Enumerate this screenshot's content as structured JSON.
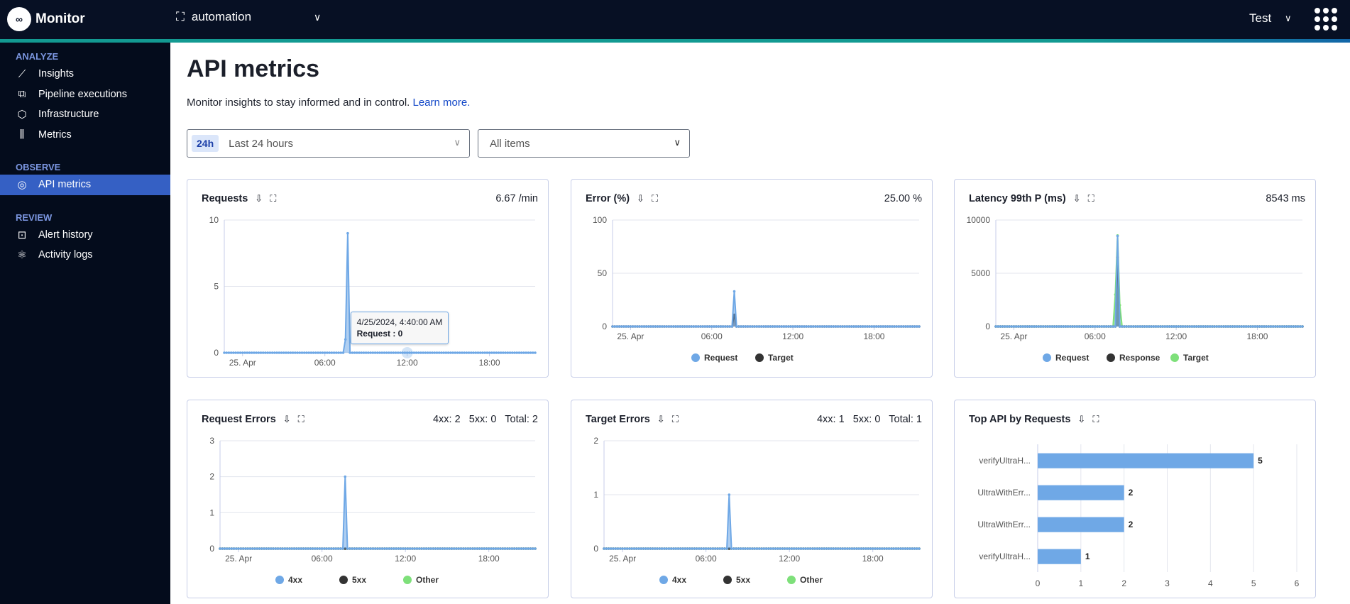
{
  "header": {
    "app_name": "Monitor",
    "workspace": "automation",
    "user": "Test"
  },
  "sidebar": {
    "sections": [
      {
        "label": "ANALYZE",
        "items": [
          {
            "label": "Insights",
            "icon": "chart-line-icon"
          },
          {
            "label": "Pipeline executions",
            "icon": "pipeline-icon"
          },
          {
            "label": "Infrastructure",
            "icon": "hexagon-icon"
          },
          {
            "label": "Metrics",
            "icon": "bars-icon"
          }
        ]
      },
      {
        "label": "OBSERVE",
        "items": [
          {
            "label": "API metrics",
            "icon": "pulse-icon",
            "active": true
          }
        ]
      },
      {
        "label": "REVIEW",
        "items": [
          {
            "label": "Alert history",
            "icon": "alert-icon"
          },
          {
            "label": "Activity logs",
            "icon": "atom-icon"
          }
        ]
      }
    ]
  },
  "page": {
    "title": "API metrics",
    "subtitle": "Monitor insights to stay informed and in control.",
    "learn_more": "Learn more."
  },
  "filters": {
    "time_badge": "24h",
    "time_value": "Last 24 hours",
    "items_value": "All items"
  },
  "colors": {
    "request": "#6fa8e6",
    "response": "#333333",
    "target": "#7ee07a",
    "accent": "#3560c4"
  },
  "cards": [
    {
      "title": "Requests",
      "value": "6.67 /min"
    },
    {
      "title": "Error (%)",
      "value": "25.00 %"
    },
    {
      "title": "Latency 99th P (ms)",
      "value": "8543 ms"
    },
    {
      "title": "Request Errors",
      "value": "4xx: 2   5xx: 0   Total: 2"
    },
    {
      "title": "Target Errors",
      "value": "4xx: 1   5xx: 0   Total: 1"
    },
    {
      "title": "Top API by Requests",
      "value": ""
    }
  ],
  "tooltip": {
    "line1": "4/25/2024, 4:40:00 AM",
    "line2": "Request : 0"
  },
  "chart_data": [
    {
      "type": "area",
      "x_range": [
        "2024-04-24 22:40",
        "2024-04-25 21:20"
      ],
      "interval_minutes": 10,
      "xticks": [
        "25. Apr",
        "06:00",
        "12:00",
        "18:00"
      ],
      "yticks": [
        0,
        5,
        10
      ],
      "ylim": [
        0,
        10
      ],
      "legend": false,
      "series": [
        {
          "name": "Request",
          "color": "#6fa8e6",
          "default": 0,
          "points": [
            [
              "07:30",
              1
            ],
            [
              "07:40",
              9
            ],
            [
              "07:50",
              0
            ]
          ]
        }
      ]
    },
    {
      "type": "area",
      "x_range": [
        "2024-04-24 22:40",
        "2024-04-25 21:20"
      ],
      "interval_minutes": 10,
      "xticks": [
        "25. Apr",
        "06:00",
        "12:00",
        "18:00"
      ],
      "yticks": [
        0,
        50,
        100
      ],
      "ylim": [
        0,
        100
      ],
      "legend": "bottom",
      "series": [
        {
          "name": "Request",
          "color": "#6fa8e6",
          "default": 0,
          "points": [
            [
              "07:40",
              33
            ]
          ]
        },
        {
          "name": "Target",
          "color": "#333333",
          "default": 0,
          "points": [
            [
              "07:40",
              11
            ]
          ]
        }
      ]
    },
    {
      "type": "area",
      "x_range": [
        "2024-04-24 22:40",
        "2024-04-25 21:20"
      ],
      "interval_minutes": 10,
      "xticks": [
        "25. Apr",
        "06:00",
        "12:00",
        "18:00"
      ],
      "yticks": [
        0,
        5000,
        10000
      ],
      "ylim": [
        0,
        10000
      ],
      "legend": "bottom",
      "series": [
        {
          "name": "Request",
          "color": "#6fa8e6",
          "default": 0,
          "points": [
            [
              "07:40",
              8500
            ]
          ]
        },
        {
          "name": "Response",
          "color": "#333333",
          "default": 0,
          "points": [
            [
              "07:40",
              6500
            ]
          ]
        },
        {
          "name": "Target",
          "color": "#7ee07a",
          "default": 0,
          "points": [
            [
              "07:30",
              3000
            ],
            [
              "07:40",
              8543
            ],
            [
              "07:50",
              2000
            ]
          ]
        }
      ]
    },
    {
      "type": "area",
      "x_range": [
        "2024-04-24 22:40",
        "2024-04-25 21:20"
      ],
      "interval_minutes": 10,
      "xticks": [
        "25. Apr",
        "06:00",
        "12:00",
        "18:00"
      ],
      "yticks": [
        0,
        1,
        2,
        3
      ],
      "ylim": [
        0,
        3
      ],
      "legend": "bottom",
      "series": [
        {
          "name": "4xx",
          "color": "#6fa8e6",
          "default": 0,
          "points": [
            [
              "07:40",
              2
            ]
          ]
        },
        {
          "name": "5xx",
          "color": "#333333",
          "default": 0,
          "points": []
        },
        {
          "name": "Other",
          "color": "#7ee07a",
          "default": 0,
          "points": []
        }
      ]
    },
    {
      "type": "area",
      "x_range": [
        "2024-04-24 22:40",
        "2024-04-25 21:20"
      ],
      "interval_minutes": 10,
      "xticks": [
        "25. Apr",
        "06:00",
        "12:00",
        "18:00"
      ],
      "yticks": [
        0,
        1,
        2
      ],
      "ylim": [
        0,
        2
      ],
      "legend": "bottom",
      "series": [
        {
          "name": "4xx",
          "color": "#6fa8e6",
          "default": 0,
          "points": [
            [
              "07:40",
              1
            ]
          ]
        },
        {
          "name": "5xx",
          "color": "#333333",
          "default": 0,
          "points": []
        },
        {
          "name": "Other",
          "color": "#7ee07a",
          "default": 0,
          "points": []
        }
      ]
    },
    {
      "type": "bar",
      "orientation": "horizontal",
      "categories": [
        "verifyUltraH...",
        "UltraWithErr...",
        "UltraWithErr...",
        "verifyUltraH..."
      ],
      "values": [
        5,
        2,
        2,
        1
      ],
      "xlim": [
        0,
        6
      ],
      "xticks": [
        0,
        1,
        2,
        3,
        4,
        5,
        6
      ],
      "color": "#6fa8e6",
      "data_labels": true
    }
  ]
}
